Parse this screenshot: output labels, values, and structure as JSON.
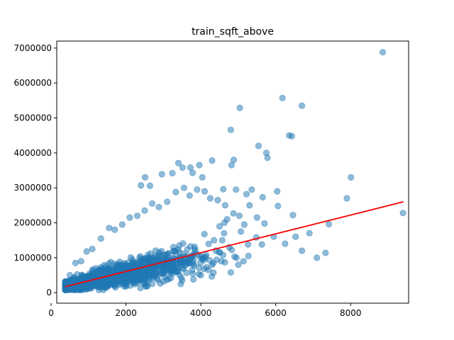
{
  "chart_data": {
    "type": "scatter",
    "title": "train_sqft_above",
    "xlabel": "",
    "ylabel": "",
    "xlim": [
      150,
      9550
    ],
    "ylim": [
      -300000,
      7200000
    ],
    "xticks": [
      0,
      2000,
      4000,
      6000,
      8000
    ],
    "xtick_labels": [
      "0",
      "2000",
      "4000",
      "6000",
      "8000"
    ],
    "yticks": [
      0,
      1000000,
      2000000,
      3000000,
      4000000,
      5000000,
      6000000,
      7000000
    ],
    "ytick_labels": [
      "0",
      "1000000",
      "2000000",
      "3000000",
      "4000000",
      "5000000",
      "6000000",
      "7000000"
    ],
    "grid": false,
    "point_color": "#1f77b4",
    "point_alpha": 0.5,
    "fit_line_color": "#ff0000",
    "fit_line": {
      "x": [
        370,
        9410
      ],
      "y": [
        170000,
        2600000
      ]
    },
    "points": [
      [
        8860,
        6880000
      ],
      [
        6180,
        5570000
      ],
      [
        6700,
        5350000
      ],
      [
        5040,
        5290000
      ],
      [
        4800,
        4660000
      ],
      [
        6360,
        4500000
      ],
      [
        6430,
        4480000
      ],
      [
        5540,
        4200000
      ],
      [
        5750,
        4000000
      ],
      [
        5780,
        3860000
      ],
      [
        4880,
        3800000
      ],
      [
        4820,
        3650000
      ],
      [
        4300,
        3780000
      ],
      [
        3400,
        3710000
      ],
      [
        3510,
        3580000
      ],
      [
        3720,
        3580000
      ],
      [
        3960,
        3650000
      ],
      [
        3240,
        3420000
      ],
      [
        2960,
        3390000
      ],
      [
        2510,
        3300000
      ],
      [
        2400,
        3070000
      ],
      [
        2640,
        3060000
      ],
      [
        4040,
        3300000
      ],
      [
        3780,
        3430000
      ],
      [
        6040,
        2900000
      ],
      [
        5650,
        2730000
      ],
      [
        5220,
        2820000
      ],
      [
        5360,
        2950000
      ],
      [
        4600,
        2960000
      ],
      [
        4940,
        2950000
      ],
      [
        6060,
        2480000
      ],
      [
        6460,
        2220000
      ],
      [
        5700,
        1980000
      ],
      [
        5950,
        1600000
      ],
      [
        6530,
        1600000
      ],
      [
        7420,
        1960000
      ],
      [
        7330,
        1140000
      ],
      [
        7900,
        2700000
      ],
      [
        8010,
        3300000
      ],
      [
        9400,
        2280000
      ],
      [
        5300,
        2500000
      ],
      [
        5500,
        2150000
      ],
      [
        5030,
        2200000
      ],
      [
        5160,
        1950000
      ],
      [
        5480,
        1580000
      ],
      [
        5070,
        1750000
      ],
      [
        5260,
        1380000
      ],
      [
        5630,
        1380000
      ],
      [
        4950,
        1000000
      ],
      [
        4800,
        580000
      ],
      [
        5000,
        800000
      ],
      [
        5140,
        900000
      ],
      [
        5270,
        1050000
      ],
      [
        4650,
        2500000
      ],
      [
        4450,
        2650000
      ],
      [
        4250,
        2700000
      ],
      [
        4100,
        2900000
      ],
      [
        3900,
        2950000
      ],
      [
        3700,
        2780000
      ],
      [
        3550,
        3000000
      ],
      [
        3330,
        2880000
      ],
      [
        3100,
        2600000
      ],
      [
        2880,
        2450000
      ],
      [
        2700,
        2550000
      ],
      [
        2500,
        2350000
      ],
      [
        2300,
        2200000
      ],
      [
        2100,
        2150000
      ],
      [
        1900,
        1950000
      ],
      [
        1700,
        1800000
      ],
      [
        1550,
        1850000
      ],
      [
        1330,
        1550000
      ],
      [
        1100,
        1250000
      ],
      [
        950,
        1180000
      ],
      [
        800,
        900000
      ],
      [
        650,
        850000
      ],
      [
        500,
        500000
      ],
      [
        420,
        300000
      ],
      [
        380,
        250000
      ],
      [
        450,
        150000
      ],
      [
        600,
        100000
      ],
      [
        900,
        130000
      ],
      [
        1300,
        150000
      ],
      [
        1700,
        200000
      ],
      [
        2000,
        180000
      ],
      [
        2500,
        260000
      ],
      [
        3000,
        320000
      ],
      [
        3500,
        350000
      ],
      [
        3800,
        380000
      ],
      [
        4000,
        500000
      ],
      [
        4200,
        650000
      ],
      [
        4350,
        1500000
      ],
      [
        4400,
        1200000
      ],
      [
        4500,
        1900000
      ],
      [
        4620,
        1700000
      ],
      [
        4700,
        2100000
      ],
      [
        4760,
        1300000
      ],
      [
        4550,
        900000
      ],
      [
        4300,
        800000
      ],
      [
        4100,
        1000000
      ],
      [
        3900,
        1100000
      ],
      [
        6700,
        1200000
      ],
      [
        6250,
        1400000
      ],
      [
        7100,
        1000000
      ],
      [
        6900,
        1700000
      ],
      [
        4870,
        2270000
      ]
    ],
    "cloud_seed": 42,
    "cloud_count": 1500
  }
}
